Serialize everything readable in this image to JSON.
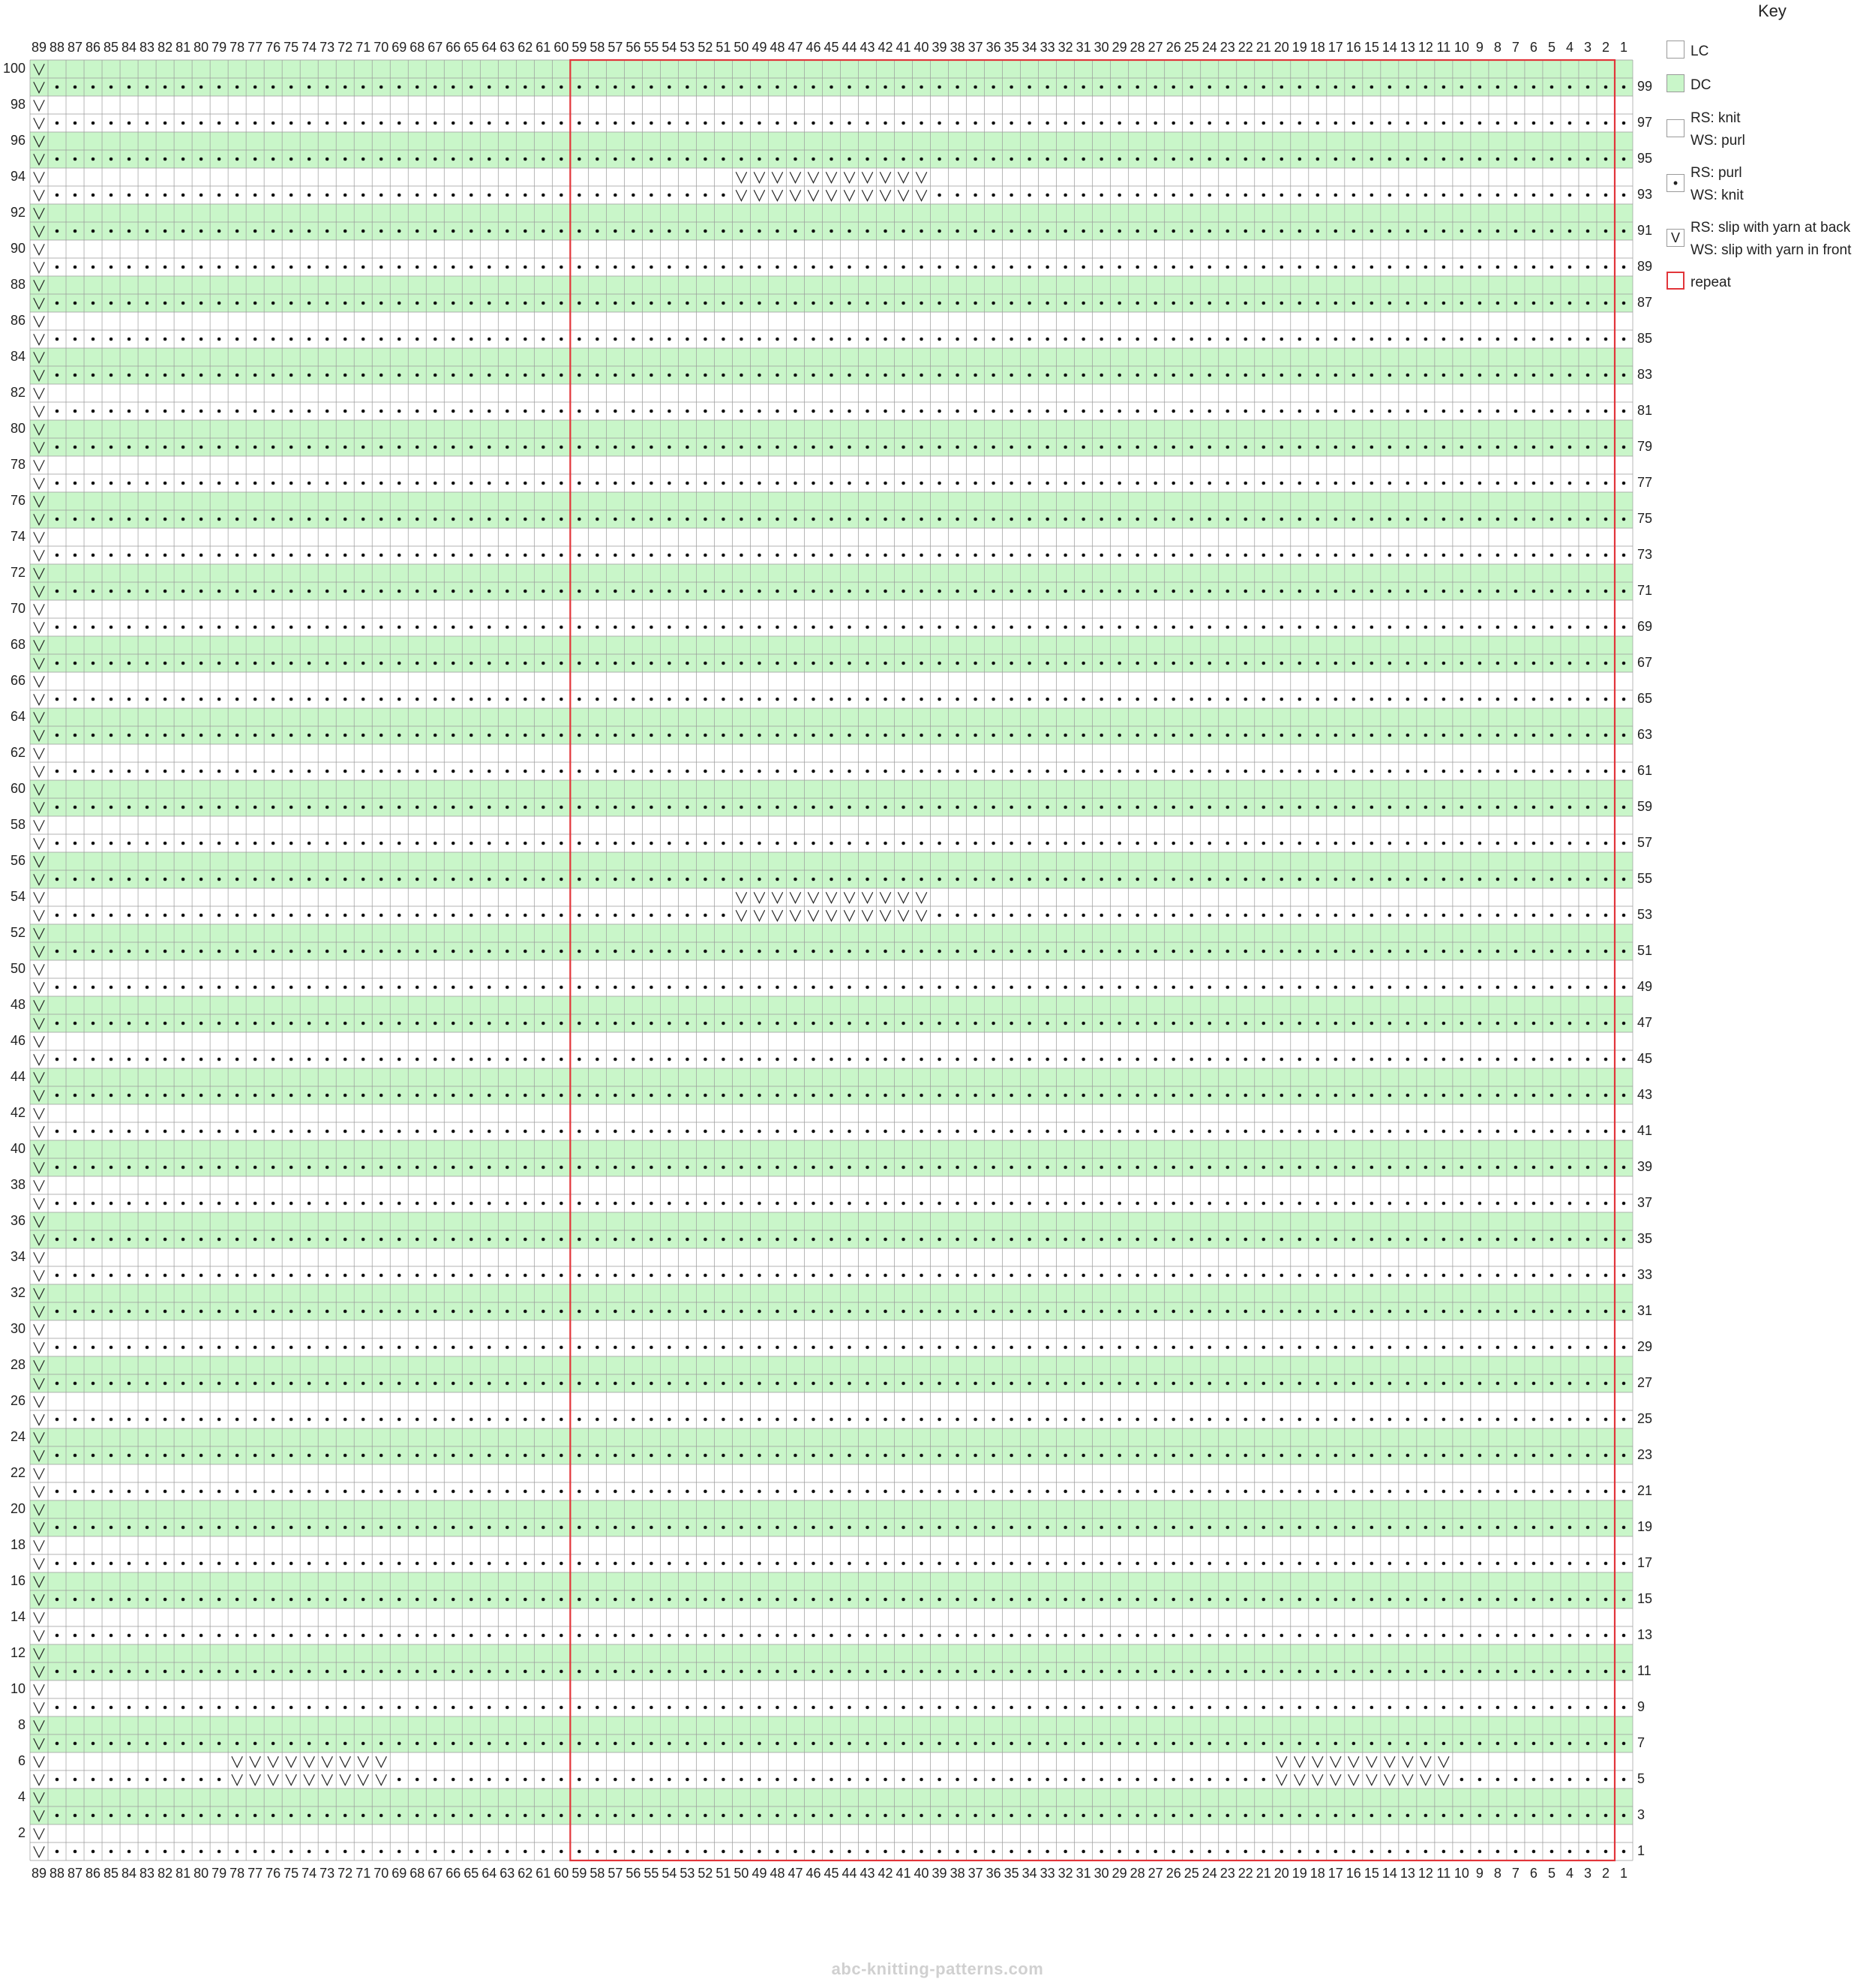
{
  "chart_data": {
    "type": "knitting-chart",
    "stitches": 89,
    "rows": 100,
    "repeat": {
      "from_stitch": 2,
      "to_stitch": 59
    },
    "colors": {
      "LC": "#ffffff",
      "DC": "#c9f6c9",
      "repeat": "#e2353a",
      "grid": "#9a9a9a"
    },
    "row_color_rule": "rows 3,4,7,8,11,12 ... (row mod 4 in {0,3}) are DC; others LC",
    "patterns": {
      "A": "SPPPPPPPPPPPPPPPPPPPPPPPPPPPPPPPPPPPPPPPPPPPPPPPPPPPPPPPPPPPPPPPPPPPPPPPPPPPPPPPPPPPPPPPP",
      "B": "SKKKKKKKKKKKKKKKKKKKKKKKKKKKKKKKKKKKKKKKKKKKKKKKKKKKKKKKKKKKKKKKKKKKKKKKKKKKKKKKKKKKKKKKKP"
    },
    "row_patterns": {
      "1": "A",
      "2": "B",
      "3": "A",
      "4": "B",
      "5": "A",
      "6": "B",
      "7": "A",
      "8": "B",
      "9": "A",
      "10": "B",
      "11": "A",
      "12": "B",
      "13": "A",
      "14": "B",
      "15": "A",
      "16": "B",
      "17": "A",
      "18": "B",
      "19": "A",
      "20": "B",
      "21": "A",
      "22": "B",
      "23": "A",
      "24": "B",
      "25": "A",
      "26": "B",
      "27": "A",
      "28": "B",
      "29": "A",
      "30": "B",
      "31": "A",
      "32": "B",
      "33": "A",
      "34": "B",
      "35": "A",
      "36": "B",
      "37": "A",
      "38": "B",
      "39": "A",
      "40": "B",
      "41": "A",
      "42": "B",
      "43": "A",
      "44": "B",
      "45": "A",
      "46": "B",
      "47": "A",
      "48": "B",
      "49": "A",
      "50": "B",
      "51": "A",
      "52": "B",
      "53": "A",
      "54": "B",
      "55": "A",
      "56": "B",
      "57": "A",
      "58": "B",
      "59": "A",
      "60": "B",
      "61": "A",
      "62": "B",
      "63": "A",
      "64": "B",
      "65": "A",
      "66": "B",
      "67": "A",
      "68": "B",
      "69": "A",
      "70": "B",
      "71": "A",
      "72": "B",
      "73": "A",
      "74": "B",
      "75": "A",
      "76": "B",
      "77": "A",
      "78": "B",
      "79": "A",
      "80": "B",
      "81": "A",
      "82": "B",
      "83": "A",
      "84": "B",
      "85": "A",
      "86": "B",
      "87": "A",
      "88": "B",
      "89": "A",
      "90": "B",
      "91": "A",
      "92": "B",
      "93": "A",
      "94": "B",
      "95": "A",
      "96": "B",
      "97": "A",
      "98": "B",
      "99": "A",
      "100": "B"
    },
    "slip_overrides": [
      {
        "row": 5,
        "slips": [
          11,
          12,
          13,
          14,
          15,
          16,
          17,
          18,
          19,
          20,
          70,
          71,
          72,
          73,
          74,
          75,
          76,
          77,
          78
        ],
        "pattern": "lower"
      },
      {
        "row": 6,
        "slips": [
          11,
          12,
          13,
          14,
          15,
          16,
          17,
          18,
          19,
          20,
          70,
          71,
          72,
          73,
          74,
          75,
          76,
          77,
          78
        ],
        "pattern": "upper"
      },
      {
        "row": 53,
        "slips": [
          40,
          41,
          42,
          43,
          44,
          45,
          46,
          47,
          48,
          49,
          50
        ],
        "pattern": "lower"
      },
      {
        "row": 54,
        "slips": [
          40,
          41,
          42,
          43,
          44,
          45,
          46,
          47,
          48,
          49,
          50
        ],
        "pattern": "upper"
      },
      {
        "row": 93,
        "slips": [
          40,
          41,
          42,
          43,
          44,
          45,
          46,
          47,
          48,
          49,
          50
        ],
        "pattern": "lower"
      },
      {
        "row": 94,
        "slips": [
          40,
          41,
          42,
          43,
          44,
          45,
          46,
          47,
          48,
          49,
          50
        ],
        "pattern": "upper"
      }
    ],
    "column_labels": [
      "89",
      "88",
      "87",
      "86",
      "85",
      "84",
      "83",
      "82",
      "81",
      "80",
      "79",
      "78",
      "77",
      "76",
      "75",
      "74",
      "73",
      "72",
      "71",
      "70",
      "69",
      "68",
      "67",
      "66",
      "65",
      "64",
      "63",
      "62",
      "61",
      "60",
      "59",
      "58",
      "57",
      "56",
      "55",
      "54",
      "53",
      "52",
      "51",
      "50",
      "49",
      "48",
      "47",
      "46",
      "45",
      "44",
      "43",
      "42",
      "41",
      "40",
      "39",
      "38",
      "37",
      "36",
      "35",
      "34",
      "33",
      "32",
      "31",
      "30",
      "29",
      "28",
      "27",
      "26",
      "25",
      "24",
      "23",
      "22",
      "21",
      "20",
      "19",
      "18",
      "17",
      "16",
      "15",
      "14",
      "13",
      "12",
      "11",
      "10",
      "9",
      "8",
      "7",
      "6",
      "5",
      "4",
      "3",
      "2",
      "1"
    ],
    "row_labels_left": [
      "100",
      "98",
      "96",
      "94",
      "92",
      "90",
      "88",
      "86",
      "84",
      "82",
      "80",
      "78",
      "76",
      "74",
      "72",
      "70",
      "68",
      "66",
      "64",
      "62",
      "60",
      "58",
      "56",
      "54",
      "52",
      "50",
      "48",
      "46",
      "44",
      "42",
      "40",
      "38",
      "36",
      "34",
      "32",
      "30",
      "28",
      "26",
      "24",
      "22",
      "20",
      "18",
      "16",
      "14",
      "12",
      "10",
      "8",
      "6",
      "4",
      "2"
    ],
    "row_labels_right": [
      "99",
      "97",
      "95",
      "93",
      "91",
      "89",
      "87",
      "85",
      "83",
      "81",
      "79",
      "77",
      "75",
      "73",
      "71",
      "69",
      "67",
      "65",
      "63",
      "61",
      "59",
      "57",
      "55",
      "53",
      "51",
      "49",
      "47",
      "45",
      "43",
      "41",
      "39",
      "37",
      "35",
      "33",
      "31",
      "29",
      "27",
      "25",
      "23",
      "21",
      "19",
      "17",
      "15",
      "13",
      "11",
      "9",
      "7",
      "5",
      "3",
      "1"
    ]
  },
  "key": {
    "title": "Key",
    "items": [
      {
        "swatch": "",
        "labels": [
          "LC"
        ]
      },
      {
        "swatch": "",
        "labels": [
          "DC"
        ]
      },
      {
        "swatch": "",
        "labels": [
          "RS: knit",
          "WS: purl"
        ]
      },
      {
        "swatch": "•",
        "labels": [
          "RS: purl",
          "WS: knit"
        ]
      },
      {
        "swatch": "V",
        "labels": [
          "RS: slip with yarn at back",
          "WS: slip with yarn in front"
        ]
      },
      {
        "swatch": "",
        "labels": [
          "repeat"
        ]
      }
    ]
  },
  "watermark": "abc-knitting-patterns.com"
}
